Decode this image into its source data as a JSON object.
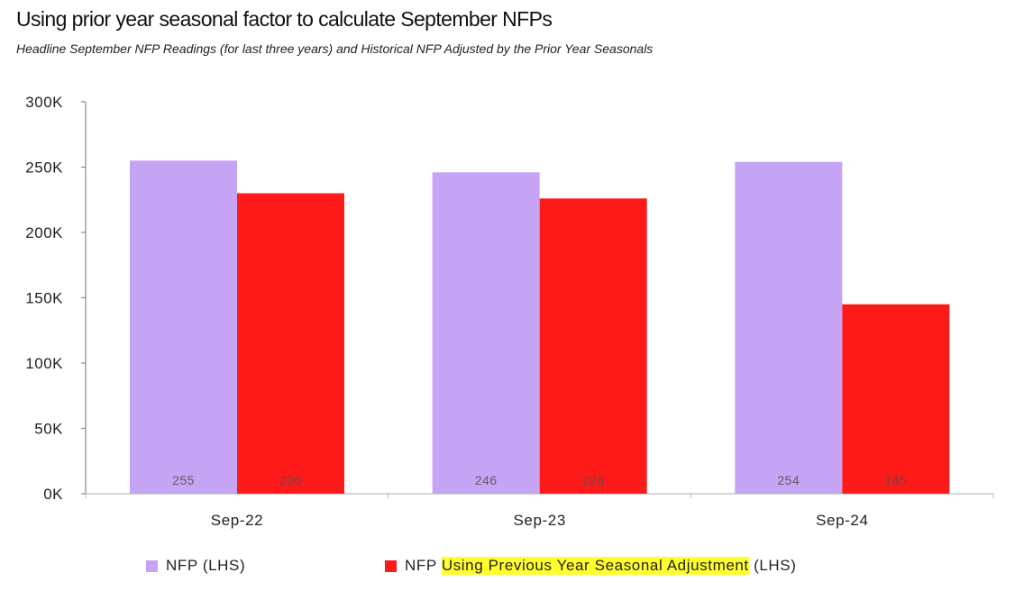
{
  "title": "Using prior year seasonal factor to calculate September NFPs",
  "subtitle": "Headline September NFP Readings (for last three years) and Historical NFP Adjusted by the Prior Year Seasonals",
  "legend": [
    {
      "pre": "NFP (LHS)",
      "hl": "",
      "post": ""
    },
    {
      "pre": "NFP ",
      "hl": "Using Previous Year Seasonal Adjustment",
      "post": " (LHS)"
    }
  ],
  "chart_data": {
    "type": "bar",
    "categories": [
      "Sep-22",
      "Sep-23",
      "Sep-24"
    ],
    "series": [
      {
        "name": "NFP (LHS)",
        "values": [
          255,
          246,
          254
        ],
        "labels": [
          "255",
          "246",
          "254"
        ],
        "color": "#c5a3f5"
      },
      {
        "name": "NFP Using Previous Year Seasonal Adjustment (LHS)",
        "values": [
          230,
          226,
          145
        ],
        "labels": [
          "230",
          "226",
          "145"
        ],
        "color": "#ff1a1a"
      }
    ],
    "y_ticks": [
      {
        "value": 0,
        "label": "0K"
      },
      {
        "value": 50,
        "label": "50K"
      },
      {
        "value": 100,
        "label": "100K"
      },
      {
        "value": 150,
        "label": "150K"
      },
      {
        "value": 200,
        "label": "200K"
      },
      {
        "value": 250,
        "label": "250K"
      },
      {
        "value": 300,
        "label": "300K"
      }
    ],
    "ylim": [
      0,
      300
    ],
    "grid": false,
    "legend_position": "bottom",
    "highlight_color": "#ffff2e"
  }
}
